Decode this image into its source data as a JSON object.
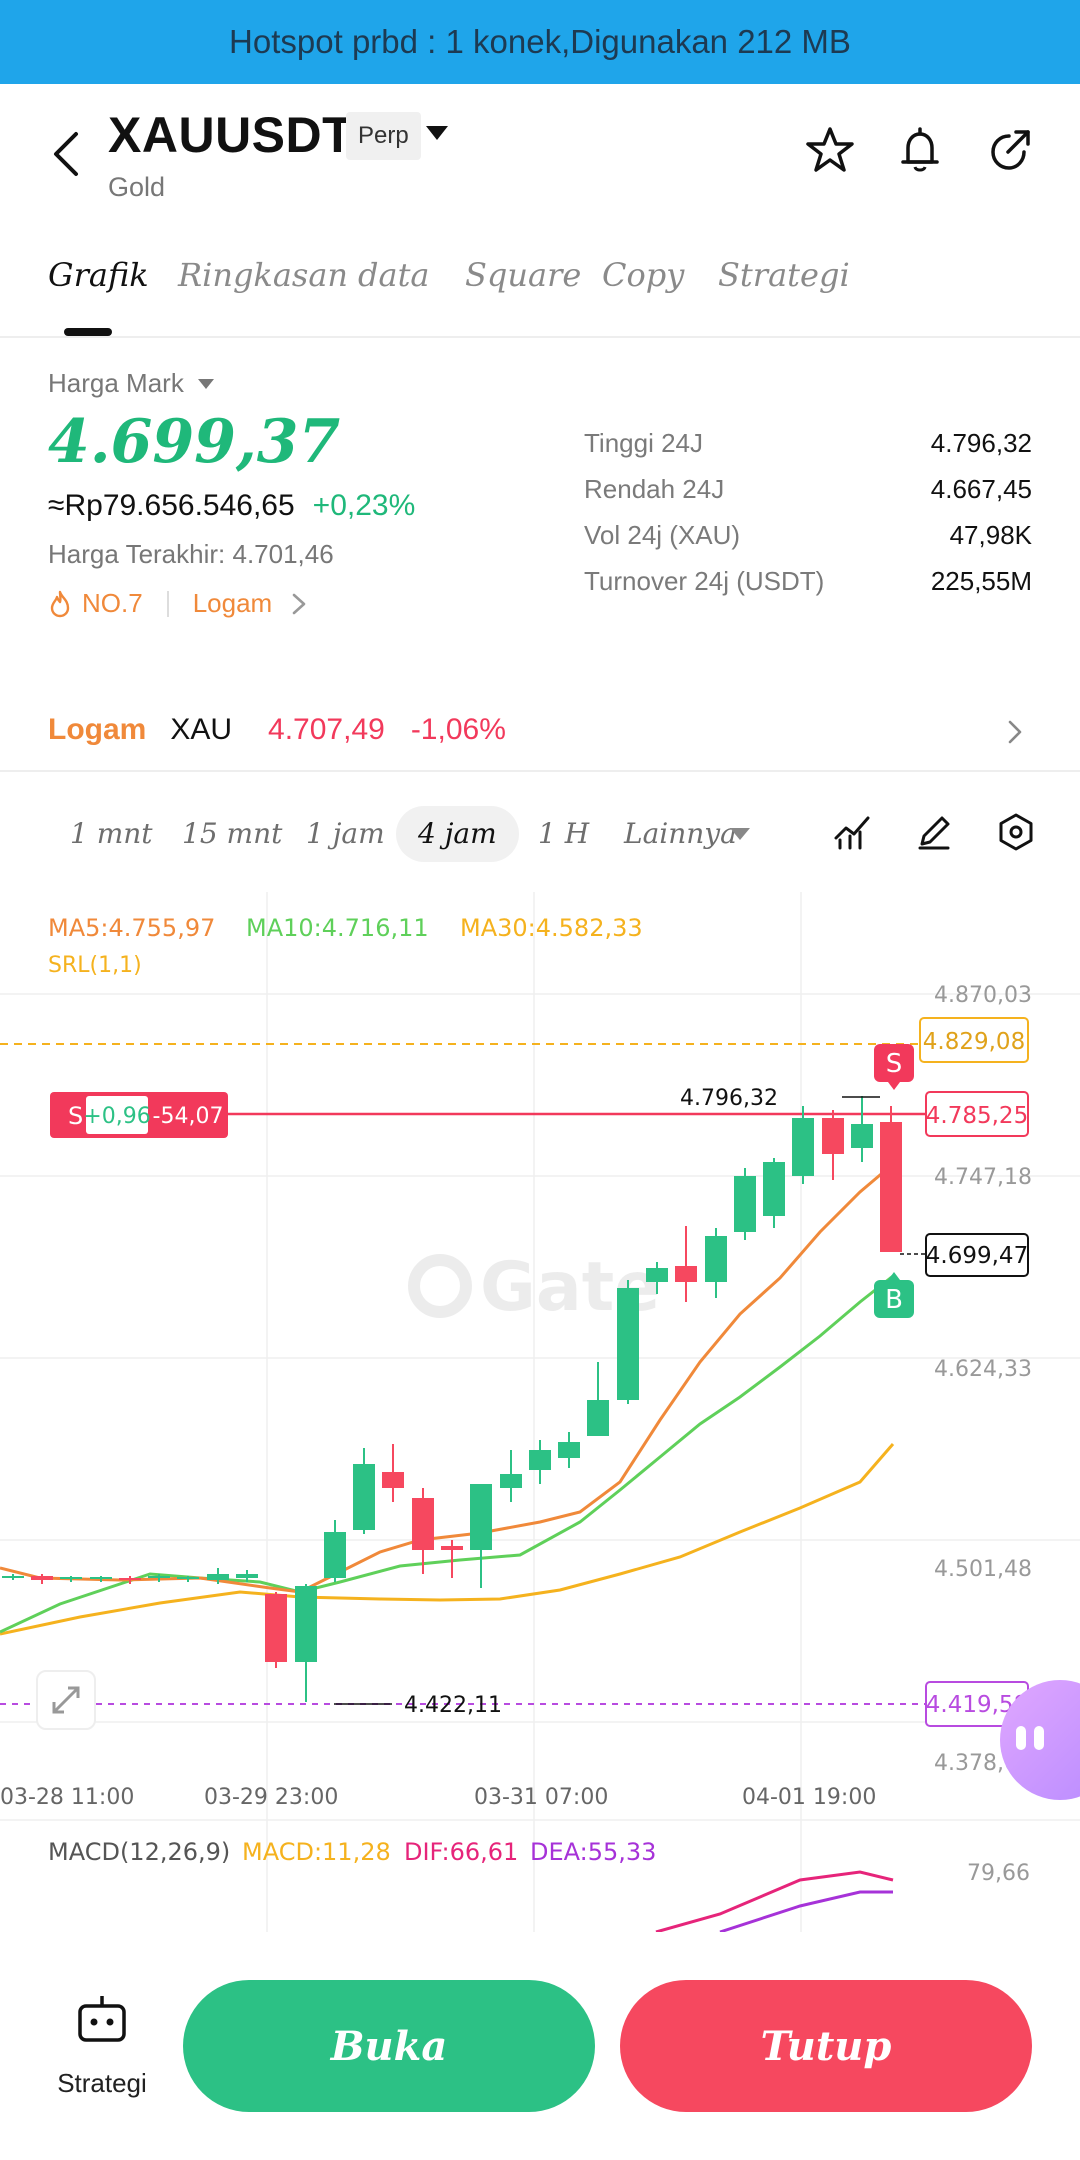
{
  "status_bar": {
    "text": "Hotspot prbd : 1 konek,Digunakan 212 MB"
  },
  "header": {
    "symbol": "XAUUSDT",
    "badge": "Perp",
    "subtitle": "Gold"
  },
  "tabs": [
    {
      "label": "Grafik",
      "active": true
    },
    {
      "label": "Ringkasan"
    },
    {
      "label": "data"
    },
    {
      "label": "Square"
    },
    {
      "label": "Copy"
    },
    {
      "label": "Strategi"
    }
  ],
  "price": {
    "mark_label": "Harga Mark",
    "value": "4.699,37",
    "rp": "≈Rp79.656.546,65",
    "change": "+0,23%",
    "last": "Harga Terakhir: 4.701,46",
    "rank": "NO.7",
    "rank_category": "Logam"
  },
  "stats": [
    {
      "k": "Tinggi 24J",
      "v": "4.796,32"
    },
    {
      "k": "Rendah 24J",
      "v": "4.667,45"
    },
    {
      "k": "Vol 24j (XAU)",
      "v": "47,98K"
    },
    {
      "k": "Turnover 24j (USDT)",
      "v": "225,55M"
    }
  ],
  "related": {
    "label": "Logam",
    "symbol": "XAU",
    "price": "4.707,49",
    "change": "-1,06%"
  },
  "intervals": {
    "items": [
      "1 mnt",
      "15 mnt",
      "1 jam",
      "4 jam",
      "1 H"
    ],
    "active": "4 jam",
    "more": "Lainnya"
  },
  "indicators": {
    "ma5": "MA5:4.755,97",
    "ma10": "MA10:4.716,11",
    "ma30": "MA30:4.582,33",
    "srl": "SRL(1,1)",
    "macd_title": "MACD(12,26,9)",
    "macd": "MACD:11,28",
    "dif": "DIF:66,61",
    "dea": "DEA:55,33",
    "macd_axis": "79,66"
  },
  "position": {
    "side": "S",
    "pnl_pct": "+0,96",
    "pnl": "-54,07"
  },
  "markers": {
    "sell": "S",
    "buy": "B"
  },
  "colors": {
    "up": "#2cc185",
    "down": "#f6485f",
    "ma5": "#f0893a",
    "ma10": "#5fd05a",
    "ma30": "#f5b21e",
    "accent": "#1fb87a"
  },
  "watermark": "Gate",
  "chart_data": {
    "type": "candlestick",
    "y_ticks": [
      "4.870,03",
      "4.747,18",
      "4.624,33",
      "4.501,48",
      "4.378,63"
    ],
    "x_ticks": [
      "03-28  11:00",
      "03-29  23:00",
      "03-31  07:00",
      "04-01  19:00"
    ],
    "price_lines": {
      "yellow_dashed": "4.829,08",
      "position_red": "4.785,25",
      "current": "4.699,47",
      "purple_dashed": "4.419,58"
    },
    "annotations": {
      "high": "4.796,32",
      "low": "4.422,11"
    },
    "ma_series": [
      "MA5",
      "MA10",
      "MA30"
    ]
  },
  "bottom": {
    "strategy_label": "Strategi",
    "buy_label": "Buka",
    "sell_label": "Tutup"
  }
}
